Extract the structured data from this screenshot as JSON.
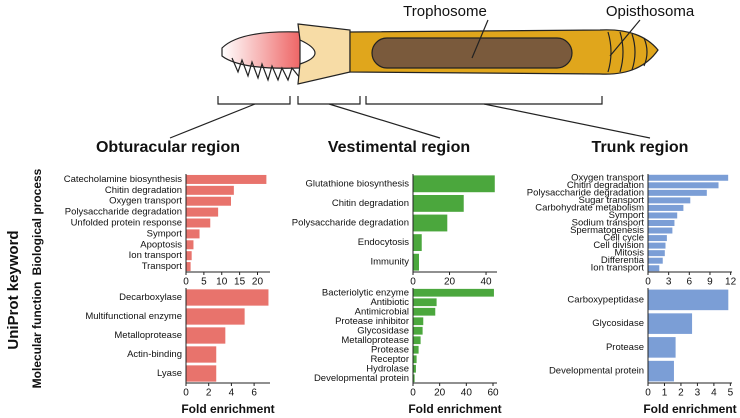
{
  "figure": {
    "anatomy_labels": [
      "Trophosome",
      "Opisthosoma"
    ],
    "y_group_title": "UniProt keyword",
    "row_labels": [
      "Biological process",
      "Molecular function"
    ]
  },
  "chart_data": [
    {
      "type": "barh",
      "title": "Obturacular region",
      "color": "#e8736c",
      "categories": [
        "Catecholamine biosynthesis",
        "Chitin degradation",
        "Oxygen transport",
        "Polysaccharide degradation",
        "Unfolded protein response",
        "Symport",
        "Apoptosis",
        "Ion transport",
        "Transport"
      ],
      "values": [
        22.6,
        13.5,
        12.7,
        9.1,
        6.9,
        3.9,
        2.2,
        1.7,
        1.4
      ],
      "xlim": [
        0,
        23.5
      ],
      "xticks": [
        0,
        5,
        10,
        15,
        20
      ]
    },
    {
      "type": "barh",
      "title": "Vestimental region",
      "color": "#4ba73d",
      "categories": [
        "Glutathione biosynthesis",
        "Chitin degradation",
        "Polysaccharide degradation",
        "Endocytosis",
        "Immunity"
      ],
      "values": [
        45,
        28,
        19,
        5,
        3.5
      ],
      "xlim": [
        0,
        46
      ],
      "xticks": [
        0,
        20,
        40
      ]
    },
    {
      "type": "barh",
      "title": "Trunk region",
      "color": "#7b9ed6",
      "categories": [
        "Oxygen transport",
        "Chitin degradation",
        "Polysaccharide degradation",
        "Sugar transport",
        "Carbohydrate metabolism",
        "Symport",
        "Sodium transport",
        "Spermatogenesis",
        "Cell cycle",
        "Cell division",
        "Mitosis",
        "Differentia",
        "Ion transport"
      ],
      "values": [
        11.7,
        10.3,
        8.6,
        6.2,
        5.2,
        4.3,
        3.9,
        3.6,
        2.8,
        2.6,
        2.5,
        2.2,
        1.7
      ],
      "xlim": [
        0,
        12.2
      ],
      "xticks": [
        0,
        3,
        6,
        9,
        12
      ]
    },
    {
      "type": "barh",
      "xlabel": "Fold enrichment",
      "color": "#e8736c",
      "categories": [
        "Decarboxylase",
        "Multifunctional enzyme",
        "Metalloprotease",
        "Actin-binding",
        "Lyase"
      ],
      "values": [
        7.3,
        5.2,
        3.5,
        2.7,
        2.7
      ],
      "xlim": [
        0,
        7.4
      ],
      "xticks": [
        0,
        2,
        4,
        6
      ]
    },
    {
      "type": "barh",
      "xlabel": "Fold enrichment",
      "color": "#4ba73d",
      "categories": [
        "Bacteriolytic enzyme",
        "Antibiotic",
        "Antimicrobial",
        "Protease inhibitor",
        "Glycosidase",
        "Metalloprotease",
        "Protease",
        "Receptor",
        "Hydrolase",
        "Developmental protein"
      ],
      "values": [
        61,
        18,
        17,
        8,
        7.5,
        6,
        4.5,
        3,
        2.5,
        1.5
      ],
      "xlim": [
        0,
        63
      ],
      "xticks": [
        0,
        20,
        40,
        60
      ]
    },
    {
      "type": "barh",
      "xlabel": "Fold enrichment",
      "color": "#7b9ed6",
      "categories": [
        "Carboxypeptidase",
        "Glycosidase",
        "Protease",
        "Developmental protein"
      ],
      "values": [
        4.9,
        2.7,
        1.7,
        1.6
      ],
      "xlim": [
        0,
        5.1
      ],
      "xticks": [
        0,
        1,
        2,
        3,
        4,
        5
      ]
    }
  ]
}
